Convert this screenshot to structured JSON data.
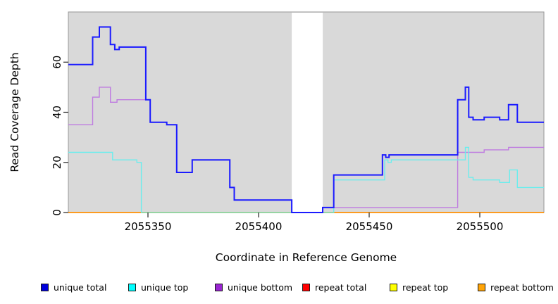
{
  "chart_data": {
    "type": "line",
    "style": "step",
    "title": "",
    "xlabel": "Coordinate in Reference Genome",
    "ylabel": "Read Coverage Depth",
    "xlim": [
      2055314,
      2055529
    ],
    "ylim": [
      0,
      80
    ],
    "xticks": [
      2055350,
      2055400,
      2055450,
      2055500
    ],
    "yticks": [
      0,
      20,
      40,
      60
    ],
    "grid": false,
    "legend_position": "bottom",
    "plot_bg_color": "#d9d9d9",
    "plot_border_color": "#969696",
    "no_data_region": {
      "x": [
        2055415,
        2055429
      ],
      "color": "#ffffff"
    },
    "baseline_artifact": {
      "x": [
        2055347,
        2055434
      ],
      "y": 0,
      "color": "#8dd8a8"
    },
    "draw_order": [
      4,
      3,
      5,
      2,
      1,
      "artifact",
      0
    ],
    "series": [
      {
        "name": "unique total",
        "legend_color": "#0000dc",
        "line_color": "#1b1bff",
        "line_width": 2,
        "points": [
          [
            2055314,
            59
          ],
          [
            2055325,
            70
          ],
          [
            2055328,
            74
          ],
          [
            2055333,
            67
          ],
          [
            2055335,
            65
          ],
          [
            2055337,
            66
          ],
          [
            2055349,
            45
          ],
          [
            2055351,
            36
          ],
          [
            2055358.5,
            35
          ],
          [
            2055363,
            16
          ],
          [
            2055370,
            21
          ],
          [
            2055387,
            10
          ],
          [
            2055389,
            5
          ],
          [
            2055415,
            0
          ],
          [
            2055429,
            2
          ],
          [
            2055434,
            15
          ],
          [
            2055456,
            23
          ],
          [
            2055457.5,
            22
          ],
          [
            2055459,
            23
          ],
          [
            2055490,
            45
          ],
          [
            2055493.5,
            50
          ],
          [
            2055495,
            38
          ],
          [
            2055497,
            37
          ],
          [
            2055502,
            38
          ],
          [
            2055509,
            37
          ],
          [
            2055513,
            43
          ],
          [
            2055517,
            36
          ]
        ]
      },
      {
        "name": "unique top",
        "legend_color": "#00ffff",
        "line_color": "#6beded",
        "line_width": 1.4,
        "points": [
          [
            2055314,
            24
          ],
          [
            2055334,
            21
          ],
          [
            2055345,
            20
          ],
          [
            2055347,
            0
          ],
          [
            2055434,
            13
          ],
          [
            2055457,
            21
          ],
          [
            2055458.5,
            20
          ],
          [
            2055460,
            21
          ],
          [
            2055493.5,
            26
          ],
          [
            2055495,
            14
          ],
          [
            2055497,
            13
          ],
          [
            2055509,
            12
          ],
          [
            2055513.5,
            17
          ],
          [
            2055517,
            10
          ]
        ]
      },
      {
        "name": "unique bottom",
        "legend_color": "#9a25d2",
        "line_color": "#bf7ce0",
        "line_width": 1.4,
        "points": [
          [
            2055314,
            35
          ],
          [
            2055325,
            46
          ],
          [
            2055328,
            50
          ],
          [
            2055333,
            44
          ],
          [
            2055336,
            45
          ],
          [
            2055349,
            45
          ],
          [
            2055351,
            36
          ],
          [
            2055358.5,
            35
          ],
          [
            2055363,
            16
          ],
          [
            2055370,
            21
          ],
          [
            2055387,
            10
          ],
          [
            2055389,
            5
          ],
          [
            2055415,
            0
          ],
          [
            2055429,
            2
          ],
          [
            2055490,
            24
          ],
          [
            2055502,
            25
          ],
          [
            2055513,
            26
          ]
        ]
      },
      {
        "name": "repeat total",
        "legend_color": "#ff0000",
        "line_color": "#ff0000",
        "line_width": 1.2,
        "points": [
          [
            2055314,
            0
          ]
        ]
      },
      {
        "name": "repeat top",
        "legend_color": "#ffff00",
        "line_color": "#ffff00",
        "line_width": 1.2,
        "points": [
          [
            2055314,
            0
          ]
        ]
      },
      {
        "name": "repeat bottom",
        "legend_color": "#ffa408",
        "line_color": "#ff9400",
        "line_width": 1.6,
        "points": [
          [
            2055314,
            0
          ]
        ]
      }
    ]
  },
  "legend_layout_note": "unique total, unique top, unique bottom, repeat total, repeat top, repeat bottom"
}
